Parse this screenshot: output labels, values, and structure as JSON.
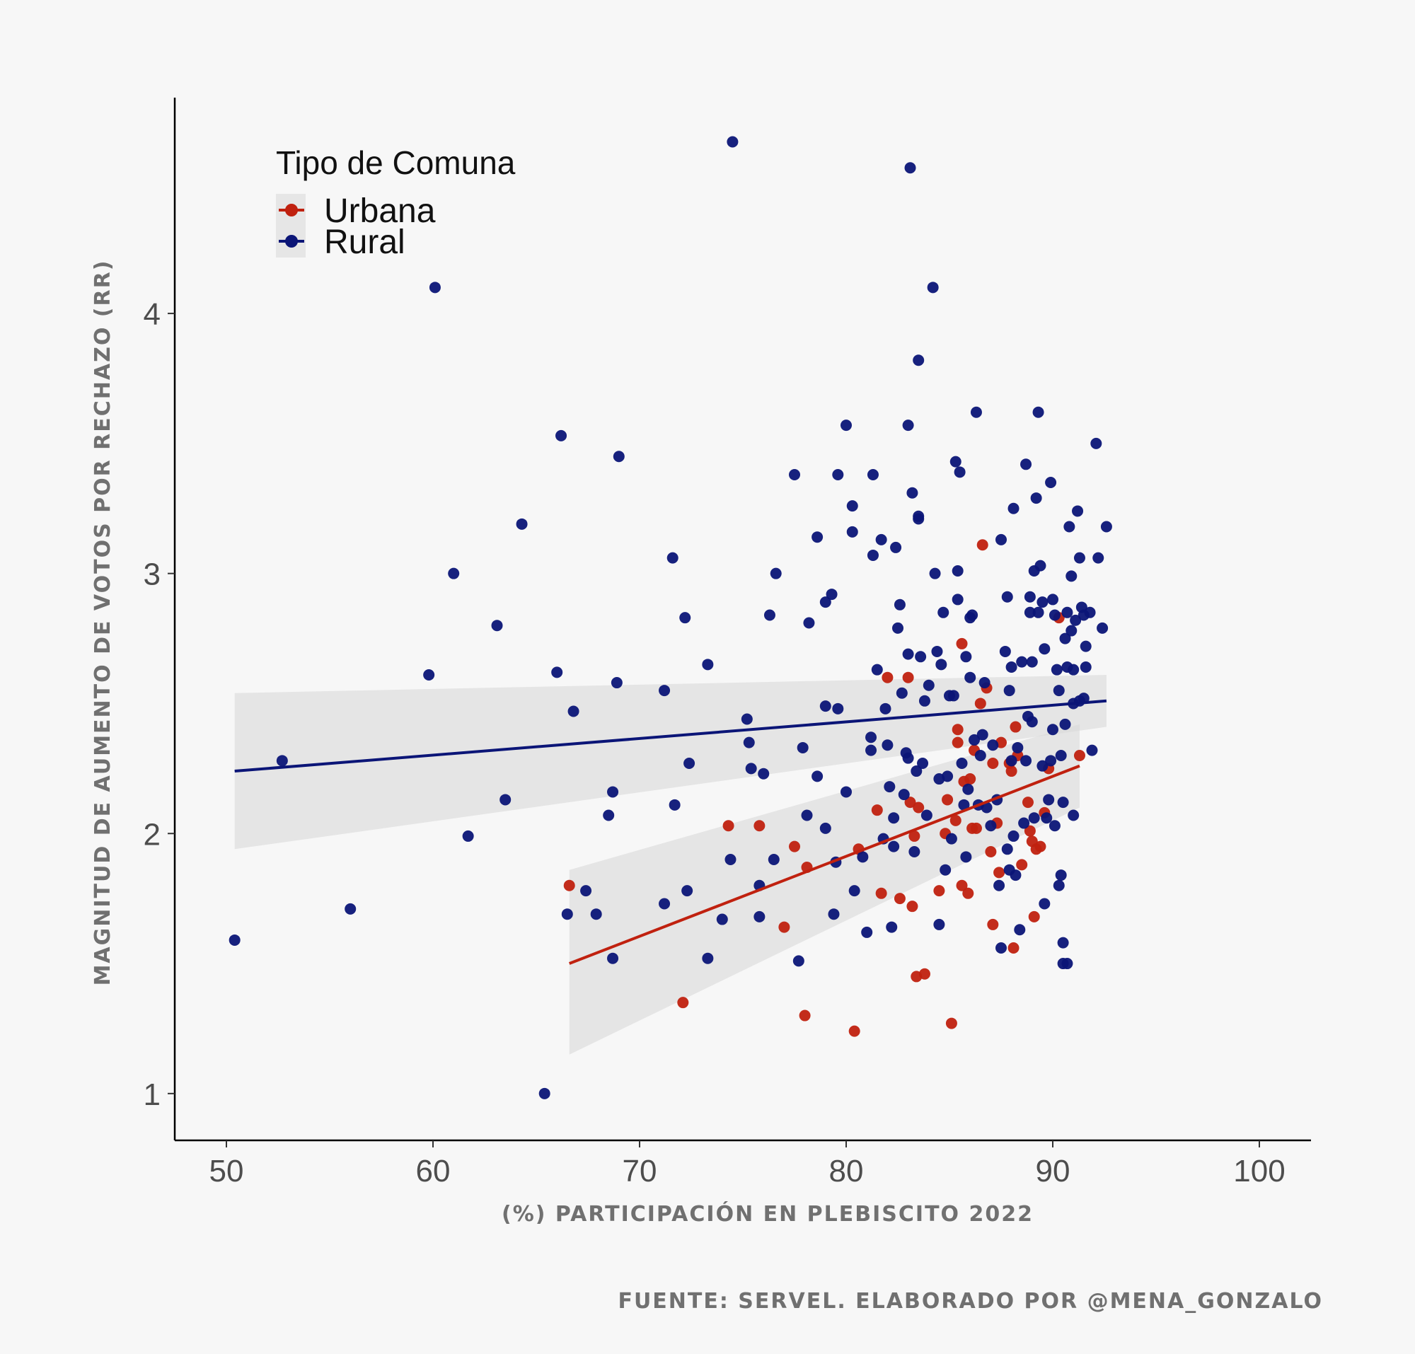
{
  "source_note": "FUENTE: SERVEL. ELABORADO POR @MENA_GONZALO",
  "chart_data": {
    "type": "scatter",
    "title": "",
    "xlabel": "(%) PARTICIPACIÓN EN PLEBISCITO 2022",
    "ylabel": "MAGNITUD DE AUMENTO DE VOTOS POR RECHAZO (RR)",
    "xlim": [
      47.5,
      102.5
    ],
    "ylim": [
      0.82,
      4.83
    ],
    "xticks": [
      50,
      60,
      70,
      80,
      90,
      100
    ],
    "yticks": [
      1,
      2,
      3,
      4
    ],
    "grid": false,
    "legend": {
      "title": "Tipo de Comuna",
      "position": "top-left"
    },
    "series": [
      {
        "name": "Urbana",
        "color": "#c0210f",
        "trend": {
          "x": [
            66.6,
            91.3
          ],
          "y": [
            1.5,
            2.26
          ],
          "ci_lower": [
            1.15,
            2.1
          ],
          "ci_upper": [
            1.86,
            2.42
          ]
        },
        "points": [
          [
            66.6,
            1.8
          ],
          [
            74.3,
            2.03
          ],
          [
            75.8,
            2.03
          ],
          [
            77.0,
            1.64
          ],
          [
            77.5,
            1.95
          ],
          [
            78.1,
            1.87
          ],
          [
            72.1,
            1.35
          ],
          [
            78.0,
            1.3
          ],
          [
            80.4,
            1.24
          ],
          [
            80.6,
            1.94
          ],
          [
            81.5,
            2.09
          ],
          [
            81.7,
            1.77
          ],
          [
            82.0,
            2.6
          ],
          [
            82.6,
            1.75
          ],
          [
            83.0,
            2.6
          ],
          [
            83.1,
            2.12
          ],
          [
            83.2,
            1.72
          ],
          [
            83.3,
            1.99
          ],
          [
            83.4,
            1.45
          ],
          [
            83.5,
            2.1
          ],
          [
            83.8,
            1.46
          ],
          [
            84.5,
            1.78
          ],
          [
            84.8,
            2.0
          ],
          [
            84.9,
            2.13
          ],
          [
            85.1,
            1.27
          ],
          [
            85.3,
            2.05
          ],
          [
            85.4,
            2.4
          ],
          [
            85.4,
            2.35
          ],
          [
            85.6,
            2.73
          ],
          [
            85.6,
            1.8
          ],
          [
            85.7,
            2.2
          ],
          [
            85.9,
            1.77
          ],
          [
            86.0,
            2.21
          ],
          [
            86.1,
            2.02
          ],
          [
            86.2,
            2.32
          ],
          [
            86.3,
            2.02
          ],
          [
            86.5,
            2.5
          ],
          [
            86.6,
            3.11
          ],
          [
            86.8,
            2.56
          ],
          [
            87.0,
            1.93
          ],
          [
            87.1,
            2.27
          ],
          [
            87.1,
            1.65
          ],
          [
            87.3,
            2.04
          ],
          [
            87.4,
            1.85
          ],
          [
            87.5,
            2.35
          ],
          [
            87.9,
            2.27
          ],
          [
            88.0,
            2.24
          ],
          [
            88.1,
            1.56
          ],
          [
            88.2,
            2.41
          ],
          [
            88.3,
            2.3
          ],
          [
            88.5,
            1.88
          ],
          [
            88.8,
            2.12
          ],
          [
            88.9,
            2.01
          ],
          [
            89.0,
            1.97
          ],
          [
            89.1,
            1.68
          ],
          [
            89.2,
            1.94
          ],
          [
            89.4,
            1.95
          ],
          [
            89.6,
            2.08
          ],
          [
            89.8,
            2.25
          ],
          [
            90.3,
            2.83
          ],
          [
            91.3,
            2.3
          ]
        ]
      },
      {
        "name": "Rural",
        "color": "#0b1577",
        "trend": {
          "x": [
            50.4,
            92.6
          ],
          "y": [
            2.24,
            2.51
          ],
          "ci_lower": [
            1.94,
            2.41
          ],
          "ci_upper": [
            2.54,
            2.61
          ]
        },
        "points": [
          [
            50.4,
            1.59
          ],
          [
            52.7,
            2.28
          ],
          [
            56.0,
            1.71
          ],
          [
            59.8,
            2.61
          ],
          [
            60.1,
            4.1
          ],
          [
            61.0,
            3.0
          ],
          [
            61.7,
            1.99
          ],
          [
            63.1,
            2.8
          ],
          [
            63.5,
            2.13
          ],
          [
            64.3,
            3.19
          ],
          [
            65.4,
            1.0
          ],
          [
            66.0,
            2.62
          ],
          [
            66.2,
            3.53
          ],
          [
            66.5,
            1.69
          ],
          [
            66.8,
            2.47
          ],
          [
            67.4,
            1.78
          ],
          [
            67.9,
            1.69
          ],
          [
            68.5,
            2.07
          ],
          [
            68.7,
            2.16
          ],
          [
            68.7,
            1.52
          ],
          [
            68.9,
            2.58
          ],
          [
            69.0,
            3.45
          ],
          [
            71.2,
            2.55
          ],
          [
            71.2,
            1.73
          ],
          [
            71.6,
            3.06
          ],
          [
            71.7,
            2.11
          ],
          [
            72.2,
            2.83
          ],
          [
            72.3,
            1.78
          ],
          [
            72.4,
            2.27
          ],
          [
            73.3,
            2.65
          ],
          [
            73.3,
            1.52
          ],
          [
            74.0,
            1.67
          ],
          [
            74.4,
            1.9
          ],
          [
            74.5,
            4.66
          ],
          [
            75.2,
            2.44
          ],
          [
            75.3,
            2.35
          ],
          [
            75.4,
            2.25
          ],
          [
            75.8,
            1.8
          ],
          [
            75.8,
            1.68
          ],
          [
            76.0,
            2.23
          ],
          [
            76.3,
            2.84
          ],
          [
            76.5,
            1.9
          ],
          [
            76.6,
            3.0
          ],
          [
            77.5,
            3.38
          ],
          [
            77.7,
            1.51
          ],
          [
            77.9,
            2.33
          ],
          [
            78.1,
            2.07
          ],
          [
            78.2,
            2.81
          ],
          [
            78.6,
            3.14
          ],
          [
            78.6,
            2.22
          ],
          [
            79.0,
            2.49
          ],
          [
            79.0,
            2.02
          ],
          [
            79.0,
            2.89
          ],
          [
            79.3,
            2.92
          ],
          [
            79.4,
            1.69
          ],
          [
            79.6,
            2.48
          ],
          [
            79.6,
            3.38
          ],
          [
            79.5,
            1.89
          ],
          [
            80.0,
            3.57
          ],
          [
            80.0,
            2.16
          ],
          [
            80.3,
            3.26
          ],
          [
            80.3,
            3.16
          ],
          [
            80.4,
            1.78
          ],
          [
            80.8,
            1.91
          ],
          [
            81.0,
            1.62
          ],
          [
            81.2,
            2.32
          ],
          [
            81.2,
            2.37
          ],
          [
            81.3,
            3.07
          ],
          [
            81.3,
            3.38
          ],
          [
            81.5,
            2.63
          ],
          [
            81.7,
            3.13
          ],
          [
            81.8,
            1.98
          ],
          [
            81.9,
            2.48
          ],
          [
            82.0,
            2.34
          ],
          [
            82.1,
            2.18
          ],
          [
            82.2,
            1.64
          ],
          [
            82.3,
            1.95
          ],
          [
            82.3,
            2.06
          ],
          [
            82.4,
            3.1
          ],
          [
            82.5,
            2.79
          ],
          [
            82.6,
            2.88
          ],
          [
            82.7,
            2.54
          ],
          [
            82.8,
            2.15
          ],
          [
            82.9,
            2.31
          ],
          [
            83.0,
            2.29
          ],
          [
            83.0,
            2.69
          ],
          [
            83.0,
            3.57
          ],
          [
            83.1,
            4.56
          ],
          [
            83.2,
            3.31
          ],
          [
            83.3,
            1.93
          ],
          [
            83.4,
            2.24
          ],
          [
            83.5,
            3.21
          ],
          [
            83.5,
            3.22
          ],
          [
            83.5,
            3.82
          ],
          [
            83.6,
            2.68
          ],
          [
            83.7,
            2.27
          ],
          [
            83.8,
            2.51
          ],
          [
            83.9,
            2.07
          ],
          [
            84.0,
            2.57
          ],
          [
            84.2,
            4.1
          ],
          [
            84.3,
            3.0
          ],
          [
            84.4,
            2.7
          ],
          [
            84.5,
            2.21
          ],
          [
            84.5,
            1.65
          ],
          [
            84.6,
            2.65
          ],
          [
            84.7,
            2.85
          ],
          [
            84.8,
            1.86
          ],
          [
            84.9,
            2.22
          ],
          [
            85.0,
            2.53
          ],
          [
            85.1,
            1.98
          ],
          [
            85.2,
            2.53
          ],
          [
            85.3,
            3.43
          ],
          [
            85.4,
            3.01
          ],
          [
            85.4,
            2.9
          ],
          [
            85.5,
            3.39
          ],
          [
            85.6,
            2.27
          ],
          [
            85.7,
            2.11
          ],
          [
            85.8,
            1.91
          ],
          [
            85.8,
            2.68
          ],
          [
            85.9,
            2.17
          ],
          [
            86.0,
            2.6
          ],
          [
            86.0,
            2.83
          ],
          [
            86.1,
            2.84
          ],
          [
            86.2,
            2.36
          ],
          [
            86.3,
            3.62
          ],
          [
            86.4,
            2.11
          ],
          [
            86.5,
            2.3
          ],
          [
            86.6,
            2.38
          ],
          [
            86.7,
            2.58
          ],
          [
            86.8,
            2.1
          ],
          [
            87.0,
            2.03
          ],
          [
            87.1,
            2.34
          ],
          [
            87.3,
            2.13
          ],
          [
            87.4,
            1.8
          ],
          [
            87.5,
            1.56
          ],
          [
            87.5,
            3.13
          ],
          [
            87.7,
            2.7
          ],
          [
            87.8,
            1.94
          ],
          [
            87.8,
            2.91
          ],
          [
            87.9,
            2.55
          ],
          [
            87.9,
            1.86
          ],
          [
            88.0,
            2.64
          ],
          [
            88.0,
            2.28
          ],
          [
            88.1,
            3.25
          ],
          [
            88.1,
            1.99
          ],
          [
            88.2,
            1.84
          ],
          [
            88.3,
            2.33
          ],
          [
            88.4,
            1.63
          ],
          [
            88.5,
            2.66
          ],
          [
            88.6,
            2.04
          ],
          [
            88.7,
            2.28
          ],
          [
            88.7,
            3.42
          ],
          [
            88.8,
            2.45
          ],
          [
            88.9,
            2.85
          ],
          [
            88.9,
            2.91
          ],
          [
            89.0,
            2.66
          ],
          [
            89.0,
            2.43
          ],
          [
            89.1,
            3.01
          ],
          [
            89.1,
            2.06
          ],
          [
            89.2,
            3.29
          ],
          [
            89.3,
            2.85
          ],
          [
            89.3,
            3.62
          ],
          [
            89.4,
            3.03
          ],
          [
            89.5,
            2.89
          ],
          [
            89.5,
            2.26
          ],
          [
            89.6,
            2.71
          ],
          [
            89.6,
            1.73
          ],
          [
            89.7,
            2.06
          ],
          [
            89.8,
            2.13
          ],
          [
            89.9,
            3.35
          ],
          [
            89.9,
            2.28
          ],
          [
            90.0,
            2.4
          ],
          [
            90.0,
            2.9
          ],
          [
            90.1,
            2.84
          ],
          [
            90.1,
            2.03
          ],
          [
            90.2,
            2.63
          ],
          [
            90.3,
            1.8
          ],
          [
            90.3,
            2.55
          ],
          [
            90.4,
            2.3
          ],
          [
            90.4,
            1.84
          ],
          [
            90.5,
            2.12
          ],
          [
            90.5,
            1.58
          ],
          [
            90.5,
            1.5
          ],
          [
            90.6,
            2.42
          ],
          [
            90.6,
            2.75
          ],
          [
            90.7,
            2.85
          ],
          [
            90.7,
            2.64
          ],
          [
            90.7,
            1.5
          ],
          [
            90.8,
            3.18
          ],
          [
            90.9,
            2.99
          ],
          [
            90.9,
            2.78
          ],
          [
            91.0,
            2.63
          ],
          [
            91.0,
            2.5
          ],
          [
            91.0,
            2.07
          ],
          [
            91.1,
            2.82
          ],
          [
            91.2,
            3.24
          ],
          [
            91.3,
            2.51
          ],
          [
            91.3,
            3.06
          ],
          [
            91.4,
            2.87
          ],
          [
            91.5,
            2.84
          ],
          [
            91.5,
            2.52
          ],
          [
            91.6,
            2.72
          ],
          [
            91.6,
            2.64
          ],
          [
            91.8,
            2.85
          ],
          [
            91.9,
            2.32
          ],
          [
            92.1,
            3.5
          ],
          [
            92.2,
            3.06
          ],
          [
            92.4,
            2.79
          ],
          [
            92.6,
            3.18
          ]
        ]
      }
    ]
  }
}
